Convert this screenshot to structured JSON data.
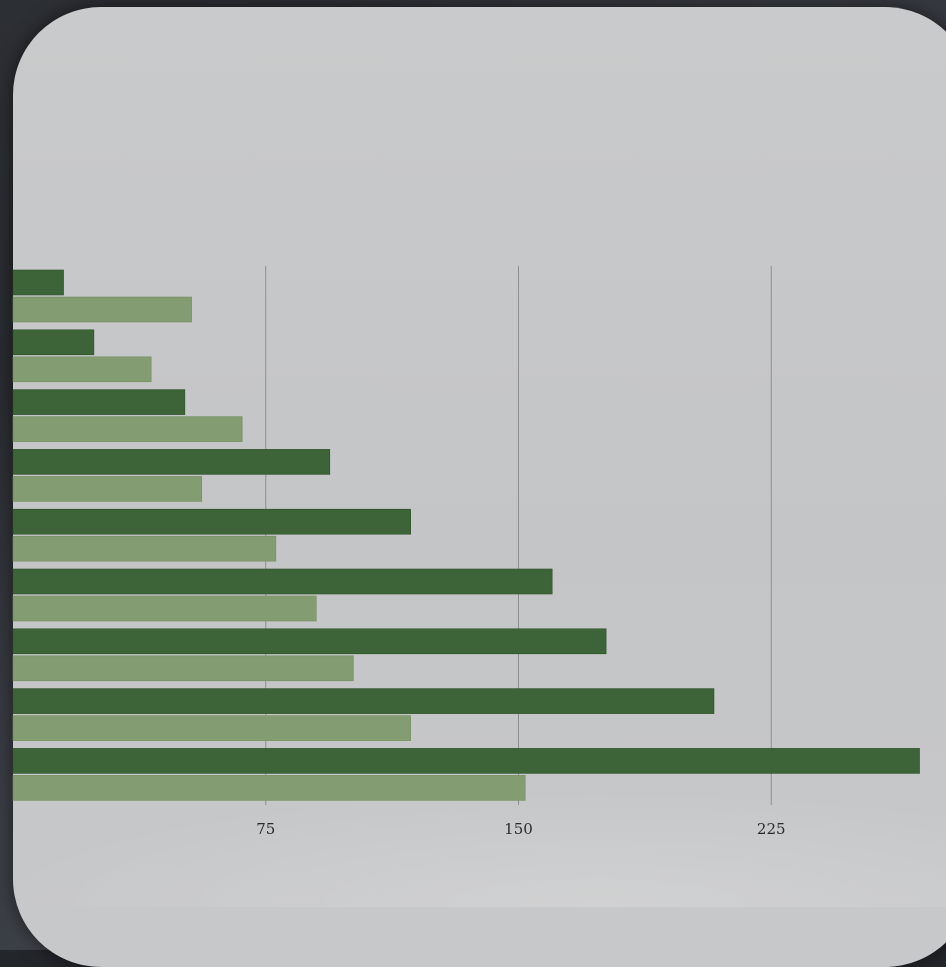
{
  "chart_data": {
    "type": "bar",
    "orientation": "horizontal",
    "categories": [
      "",
      "",
      "",
      "",
      "",
      "",
      "",
      "",
      ""
    ],
    "series": [
      {
        "values": [
          15,
          24,
          51,
          94,
          118,
          160,
          176,
          208,
          269
        ]
      },
      {
        "values": [
          53,
          41,
          68,
          56,
          78,
          90,
          101,
          118,
          152
        ]
      }
    ],
    "x_ticks": [
      "75",
      "150",
      "225"
    ],
    "xlim": [
      0,
      269
    ],
    "grid": "vertical",
    "legend": "none",
    "colors": {
      "series_dark": "#3c6438",
      "series_light": "#839c71",
      "gridline": "#8e8f91",
      "card": "#c6c7c8",
      "background": "#23262b"
    }
  }
}
